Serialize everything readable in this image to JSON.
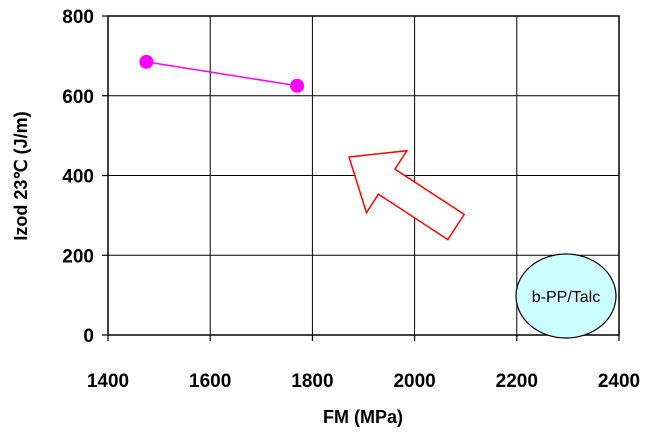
{
  "chart_data": {
    "type": "scatter",
    "title": "",
    "xlabel": "FM (MPa)",
    "ylabel": "Izod 23℃ (J/m)",
    "xlim": [
      1400,
      2400
    ],
    "ylim": [
      0,
      800
    ],
    "x_ticks": [
      "1400",
      "1600",
      "1800",
      "2000",
      "2200",
      "2400"
    ],
    "y_ticks": [
      "0",
      "200",
      "400",
      "600",
      "800"
    ],
    "grid": true,
    "series": [
      {
        "color": "#ff00ff",
        "points": [
          {
            "x": 1475,
            "y": 685
          },
          {
            "x": 1770,
            "y": 625
          }
        ]
      }
    ],
    "annotations": {
      "arrow_color": "#ff0000",
      "arrow_direction": "upper-left",
      "label": "b-PP/Talc",
      "label_fill": "#ccffff"
    }
  }
}
